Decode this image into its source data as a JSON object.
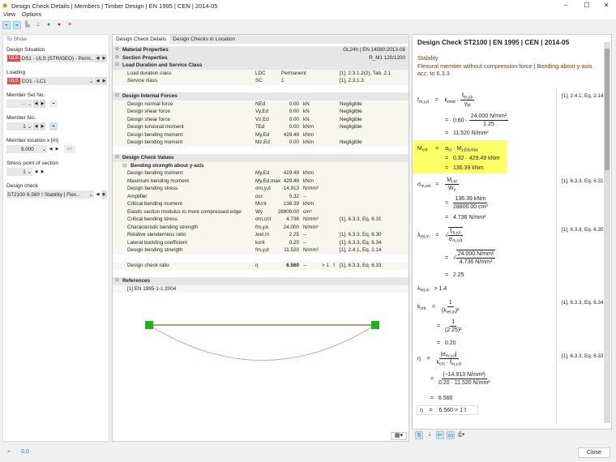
{
  "window": {
    "title": "Design Check Details | Members | Timber Design | EN 1995 | CEN | 2014-05"
  },
  "menu": [
    "View",
    "Options"
  ],
  "toolbar_icons": [
    "select-icon",
    "select-all-icon",
    "section-icon",
    "member-icon",
    "results-icon",
    "load-icon",
    "settings-icon"
  ],
  "left": {
    "heading": "To Show",
    "design_situation": {
      "label": "Design Situation",
      "badge": "ULS",
      "value": "DS1 - ULS (STR/GEO) - Perm..."
    },
    "loading": {
      "label": "Loading",
      "badge": "ULS",
      "value": "CO1 - LC1"
    },
    "member_set": {
      "label": "Member Set No.",
      "value": "--"
    },
    "member": {
      "label": "Member No.",
      "value": "1"
    },
    "location": {
      "label": "Member location x [m]",
      "value": "9.000"
    },
    "stress_point": {
      "label": "Stress point of section",
      "value": "1"
    },
    "design_check": {
      "label": "Design check",
      "id": "ST2100",
      "ratio": "6.560",
      "type": "Stability | Flex..."
    }
  },
  "tabs": [
    "Design Check Details",
    "Design Checks in Location"
  ],
  "table": [
    {
      "kind": "hd",
      "sign": "⊕",
      "name": "Material Properties",
      "ref": "GL24h | EN 14080:2013-08"
    },
    {
      "kind": "hd",
      "sign": "⊕",
      "name": "Section Properties",
      "ref": "R_M1 120/1200"
    },
    {
      "kind": "hd",
      "sign": "⊟",
      "name": "Load Duration and Service Class"
    },
    {
      "kind": "dt",
      "name": "Load duration class",
      "sym": "LDC",
      "val": "Permanent",
      "ref": "[1], 2.3.1.2(2), Tab. 2.1",
      "left": true
    },
    {
      "kind": "dt",
      "name": "Service class",
      "sym": "SC",
      "val": "1",
      "ref": "[1], 2.3.1.3",
      "left": true
    },
    {
      "kind": "blank"
    },
    {
      "kind": "hd",
      "sign": "⊟",
      "name": "Design Internal Forces"
    },
    {
      "kind": "dt",
      "name": "Design normal force",
      "sym": "NEd",
      "val": "0.00",
      "unit": "kN",
      "ref": "Negligible"
    },
    {
      "kind": "dt",
      "name": "Design shear force",
      "sym": "Vy,Ed",
      "val": "0.00",
      "unit": "kN",
      "ref": "Negligible"
    },
    {
      "kind": "dt",
      "name": "Design shear force",
      "sym": "Vz,Ed",
      "val": "0.00",
      "unit": "kN",
      "ref": "Negligible"
    },
    {
      "kind": "dt",
      "name": "Design torsional moment",
      "sym": "TEd",
      "val": "0.00",
      "unit": "kNm",
      "ref": "Negligible"
    },
    {
      "kind": "dt",
      "name": "Design bending moment",
      "sym": "My,Ed",
      "val": "429.49",
      "unit": "kNm"
    },
    {
      "kind": "dt",
      "name": "Design bending moment",
      "sym": "Mz,Ed",
      "val": "0.00",
      "unit": "kNm",
      "ref": "Negligible"
    },
    {
      "kind": "blank"
    },
    {
      "kind": "hd",
      "sign": "⊟",
      "name": "Design Check Values"
    },
    {
      "kind": "sub",
      "sign": "⊟",
      "name": "Bending strength about y-axis"
    },
    {
      "kind": "dt",
      "name": "Design bending moment",
      "sym": "My,Ed",
      "val": "429.49",
      "unit": "kNm"
    },
    {
      "kind": "dt",
      "name": "Maximum bending moment",
      "sym": "My,Ed,max",
      "val": "429.49",
      "unit": "kNm"
    },
    {
      "kind": "dt",
      "name": "Design bending stress",
      "sym": "σm,y,d",
      "val": "-14.913",
      "unit": "N/mm²"
    },
    {
      "kind": "dt",
      "name": "Amplifier",
      "sym": "αcr",
      "val": "0.32",
      "unit": "--"
    },
    {
      "kind": "dt",
      "name": "Critical bending moment",
      "sym": "Mcrit",
      "val": "136.39",
      "unit": "kNm"
    },
    {
      "kind": "dt",
      "name": "Elastic section modulus to more compressed edge",
      "sym": "Wy",
      "val": "28800.00",
      "unit": "cm³"
    },
    {
      "kind": "dt",
      "name": "Critical bending stress",
      "sym": "σm,crit",
      "val": "4.736",
      "unit": "N/mm²",
      "ref": "[1], 6.3.3, Eq. 6.31"
    },
    {
      "kind": "dt",
      "name": "Characteristic bending strength",
      "sym": "fm,y,k",
      "val": "24.000",
      "unit": "N/mm²"
    },
    {
      "kind": "dt",
      "name": "Relative slenderness ratio",
      "sym": "λrel,m",
      "val": "2.25",
      "unit": "--",
      "ref": "[1], 6.3.3, Eq. 6.30"
    },
    {
      "kind": "dt",
      "name": "Lateral buckling coefficient",
      "sym": "kcrit",
      "val": "0.20",
      "unit": "--",
      "ref": "[1], 6.3.3, Eq. 6.34"
    },
    {
      "kind": "dt",
      "name": "Design bending strength",
      "sym": "fm,y,d",
      "val": "11.520",
      "unit": "N/mm²",
      "ref": "[1], 2.4.1, Eq. 2.14"
    },
    {
      "kind": "blank"
    },
    {
      "kind": "dt",
      "name": "Design check ratio",
      "sym": "η",
      "val": "6.560",
      "unit": "--",
      "lim": "> 1",
      "ref": "[1], 6.3.3, Eq. 6.33",
      "bold": true
    },
    {
      "kind": "blank"
    },
    {
      "kind": "hd",
      "sign": "⊟",
      "name": "References"
    },
    {
      "kind": "dt",
      "name": "[1]  EN 1995-1-1:2004"
    }
  ],
  "right": {
    "title": "Design Check ST2100 | EN 1995 | CEN | 2014-05",
    "category": "Stability",
    "description": "Flexural member without compression force | Bending about y-axis acc. to 6.3.3",
    "eqs": {
      "f1": "0.60",
      "f1n": "24.000 N/mm²",
      "f1d": "1.25",
      "f1r": "11.520 N/mm²",
      "f1ref": "[1], 2.4.1, Eq. 2.14",
      "m1": "0.32 · 429.49 kNm",
      "m1r": "136.39 kNm",
      "s1n": "136.39 kNm",
      "s1d": "28800.00 cm³",
      "s1r": "4.736 N/mm²",
      "s1ref": "[1], 6.3.3, Eq. 6.31",
      "l1n": "24.000 N/mm²",
      "l1d": "4.736 N/mm²",
      "l1r": "2.25",
      "l1ref": "[1], 6.3.3, Eq. 6.30",
      "lcmp": "> 1.4",
      "k1n": "1",
      "k1d": "(2.25)²",
      "k1r": "0.20",
      "k1ref": "[1], 6.3.3, Eq. 6.34",
      "e1n": "|−14.913 N/mm²|",
      "e1d": "0.20 · 11.520 N/mm²",
      "e1r": "6.560",
      "e1ref": "[1], 6.3.3, Eq. 6.33",
      "final": "6.560",
      "final_lim": "> 1"
    }
  },
  "close_label": "Close",
  "colors": {
    "uls": "#d9534f",
    "highlight": "#ffff66",
    "node": "#1db31d",
    "beam": "#8b5a2b",
    "deflection": "#d98aa0",
    "fail": "#e00000"
  }
}
